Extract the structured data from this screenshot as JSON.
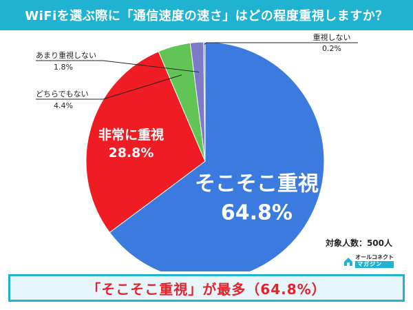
{
  "title": "WiFiを選ぶ際に「通信速度の速さ」はどの程度重視しますか？",
  "sample_note": "対象人数：500人",
  "logo": {
    "top": "オールコネクト",
    "bottom": "マガジン"
  },
  "headline": "「そこそこ重視」が最多（64.8%）",
  "colors": {
    "header": "#1fb3d1",
    "headline": "#e8202a"
  },
  "chart_data": {
    "type": "pie",
    "start": "12 o'clock, clockwise",
    "slices": [
      {
        "label": "そこそこ重視",
        "value_label": "64.8%",
        "value": 64.8,
        "color": "#3b7be0",
        "label_style": "inside-large"
      },
      {
        "label": "非常に重視",
        "value_label": "28.8%",
        "value": 28.8,
        "color": "#ef1c23",
        "label_style": "inside"
      },
      {
        "label": "どちらでもない",
        "value_label": "4.4%",
        "value": 4.4,
        "color": "#62c454",
        "label_style": "callout-left"
      },
      {
        "label": "あまり重視しない",
        "value_label": "1.8%",
        "value": 1.8,
        "color": "#7d7bc7",
        "label_style": "callout-left"
      },
      {
        "label": "重視しない",
        "value_label": "0.2%",
        "value": 0.2,
        "color": "#888888",
        "label_style": "callout-right"
      }
    ]
  }
}
